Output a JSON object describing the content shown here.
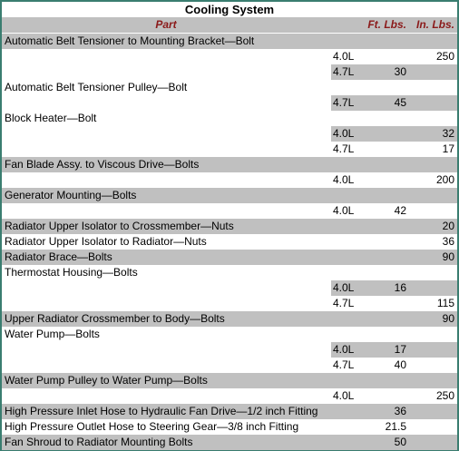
{
  "title": "Cooling System",
  "columns": [
    "Part",
    "Ft. Lbs.",
    "In. Lbs."
  ],
  "rows": [
    {
      "part": "Automatic Belt Tensioner to Mounting Bracket—Bolt"
    },
    {
      "engine": "4.0L",
      "in_lbs": 250
    },
    {
      "engine": "4.7L",
      "ft_lbs": 30
    },
    {
      "part": "Automatic Belt Tensioner Pulley—Bolt"
    },
    {
      "engine": "4.7L",
      "ft_lbs": 45
    },
    {
      "part": "Block Heater—Bolt"
    },
    {
      "engine": "4.0L",
      "in_lbs": 32
    },
    {
      "engine": "4.7L",
      "in_lbs": 17
    },
    {
      "part": "Fan Blade Assy. to Viscous Drive—Bolts"
    },
    {
      "engine": "4.0L",
      "in_lbs": 200
    },
    {
      "part": "Generator Mounting—Bolts"
    },
    {
      "engine": "4.0L",
      "ft_lbs": 42
    },
    {
      "part": "Radiator Upper Isolator to Crossmember—Nuts",
      "in_lbs": 20
    },
    {
      "part": "Radiator Upper Isolator to Radiator—Nuts",
      "in_lbs": 36
    },
    {
      "part": "Radiator Brace—Bolts",
      "in_lbs": 90
    },
    {
      "part": "Thermostat Housing—Bolts"
    },
    {
      "engine": "4.0L",
      "ft_lbs": 16
    },
    {
      "engine": "4.7L",
      "in_lbs": 115
    },
    {
      "part": "Upper Radiator Crossmember to Body—Bolts",
      "in_lbs": 90
    },
    {
      "part": "Water Pump—Bolts"
    },
    {
      "engine": "4.0L",
      "ft_lbs": 17
    },
    {
      "engine": "4.7L",
      "ft_lbs": 40
    },
    {
      "part": "Water Pump Pulley to Water Pump—Bolts"
    },
    {
      "engine": "4.0L",
      "in_lbs": 250
    },
    {
      "part": "High Pressure Inlet Hose to Hydraulic Fan Drive—1/2 inch Fitting",
      "ft_lbs": 36
    },
    {
      "part": "High Pressure Outlet Hose to Steering Gear—3/8 inch Fitting",
      "ft_lbs": 21.5
    },
    {
      "part": "Fan Shroud to Radiator Mounting Bolts",
      "ft_lbs": 50
    }
  ]
}
